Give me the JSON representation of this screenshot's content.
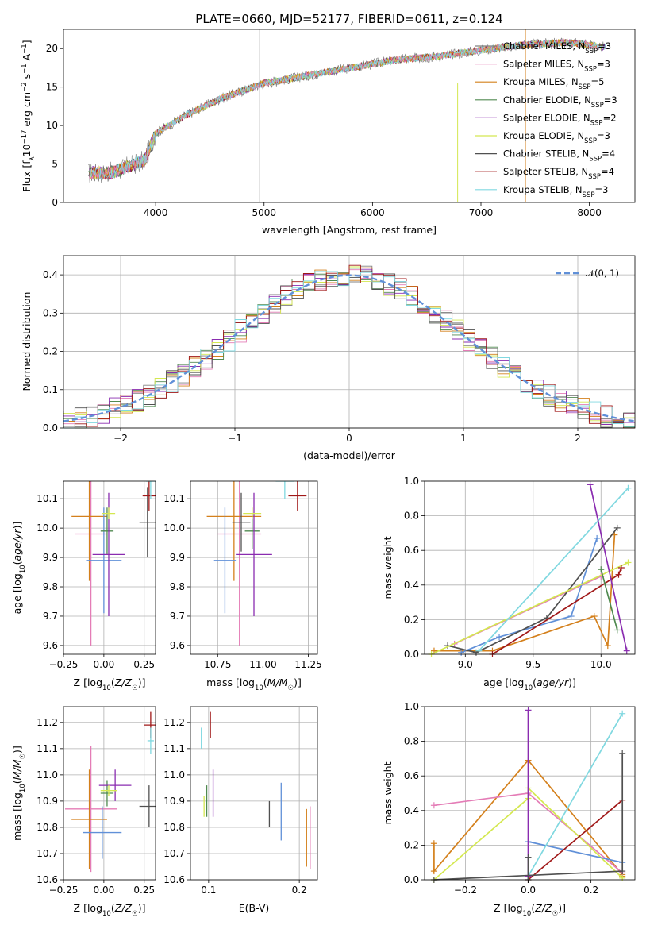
{
  "title": "PLATE=0660, MJD=52177, FIBERID=0611, z=0.124",
  "series_style": [
    {
      "name": "Chabrier MILES",
      "nssp": "3",
      "color": "#808080"
    },
    {
      "name": "Salpeter MILES",
      "nssp": "3",
      "color": "#e47cb6"
    },
    {
      "name": "Kroupa MILES",
      "nssp": "5",
      "color": "#d4801c"
    },
    {
      "name": "Chabrier ELODIE",
      "nssp": "3",
      "color": "#508a50"
    },
    {
      "name": "Salpeter ELODIE",
      "nssp": "2",
      "color": "#8a2cb0"
    },
    {
      "name": "Kroupa ELODIE",
      "nssp": "3",
      "color": "#d4e850"
    },
    {
      "name": "Chabrier STELIB",
      "nssp": "4",
      "color": "#505050"
    },
    {
      "name": "Salpeter STELIB",
      "nssp": "4",
      "color": "#a01818"
    },
    {
      "name": "Kroupa STELIB",
      "nssp": "3",
      "color": "#80d8e0"
    }
  ],
  "chart_data": [
    {
      "id": "spectrum",
      "type": "line",
      "title": "PLATE=0660, MJD=52177, FIBERID=0611, z=0.124",
      "xlabel": "wavelength [Angstrom, rest frame]",
      "ylabel": "Flux [f_λ 10^-17 erg cm^-2 s^-1 A^-1]",
      "xlim": [
        3150,
        8420
      ],
      "ylim": [
        0,
        22.5
      ],
      "xticks": [
        "4000",
        "5000",
        "6000",
        "7000",
        "8000"
      ],
      "yticks": [
        "0",
        "5",
        "10",
        "15",
        "20"
      ],
      "legend_placement": "right",
      "continuum": {
        "x": [
          3380,
          3600,
          3900,
          4000,
          4300,
          4600,
          5000,
          5400,
          5800,
          6200,
          6600,
          7000,
          7400,
          7800,
          8150
        ],
        "y": [
          3.8,
          3.9,
          5.5,
          9.0,
          11.5,
          13.5,
          15.5,
          16.5,
          17.5,
          18.5,
          19.0,
          19.8,
          20.5,
          20.8,
          20.2
        ]
      },
      "vertical_lines": [
        {
          "x": 4960,
          "ymax": 22.5
        },
        {
          "x": 6785,
          "ymax": 15.5
        },
        {
          "x": 7410,
          "ymax": 22.5
        }
      ]
    },
    {
      "id": "residuals",
      "type": "step",
      "xlabel": "(data-model)/error",
      "ylabel": "Normed distribution",
      "xlim": [
        -2.5,
        2.5
      ],
      "ylim": [
        0,
        0.45
      ],
      "xticks": [
        "−2",
        "−1",
        "0",
        "1",
        "2"
      ],
      "yticks": [
        "0.0",
        "0.1",
        "0.2",
        "0.3",
        "0.4"
      ],
      "legend_placement": "upper right",
      "normal_label": "𝒩(0, 1)",
      "normal_color": "#6090d8"
    },
    {
      "id": "age-vs-Z",
      "type": "errorbar",
      "xlabel": "Z [log10(Z/Z☉)]",
      "ylabel": "age [log10(age/yr)]",
      "xlim": [
        -0.25,
        0.32
      ],
      "ylim": [
        9.57,
        10.16
      ],
      "xticks": [
        "−0.25",
        "0.00",
        "0.25"
      ],
      "xtick_values": [
        -0.25,
        0,
        0.25
      ],
      "yticks": [
        "9.6",
        "9.7",
        "9.8",
        "9.9",
        "10.0",
        "10.1"
      ],
      "ytick_values": [
        9.6,
        9.7,
        9.8,
        9.9,
        10.0,
        10.1
      ],
      "points": [
        {
          "color": "#e47cb6",
          "x": -0.08,
          "xerr": 0.1,
          "y": 9.98,
          "yerr": 0.38
        },
        {
          "color": "#d4801c",
          "x": -0.09,
          "xerr": 0.11,
          "y": 10.04,
          "yerr": 0.22
        },
        {
          "color": "#6090d8",
          "x": 0.0,
          "xerr": 0.11,
          "y": 9.89,
          "yerr": 0.18
        },
        {
          "color": "#508a50",
          "x": 0.02,
          "xerr": 0.04,
          "y": 9.99,
          "yerr": 0.08
        },
        {
          "color": "#8a2cb0",
          "x": 0.03,
          "xerr": 0.1,
          "y": 9.91,
          "yerr": 0.21
        },
        {
          "color": "#d4e850",
          "x": 0.03,
          "xerr": 0.04,
          "y": 10.05,
          "yerr": 0.02
        },
        {
          "color": "#505050",
          "x": 0.27,
          "xerr": 0.05,
          "y": 10.02,
          "yerr": 0.12
        },
        {
          "color": "#a01818",
          "x": 0.28,
          "xerr": 0.04,
          "y": 10.11,
          "yerr": 0.05
        },
        {
          "color": "#80d8e0",
          "x": 0.29,
          "xerr": 0.03,
          "y": 10.16,
          "yerr": 0.06
        }
      ]
    },
    {
      "id": "age-vs-mass",
      "type": "errorbar",
      "xlabel": "mass [log10(M/M☉)]",
      "ylabel": "",
      "xlim": [
        10.6,
        11.3
      ],
      "ylim": [
        9.57,
        10.16
      ],
      "xticks": [
        "10.75",
        "11.00",
        "11.25"
      ],
      "xtick_values": [
        10.75,
        11.0,
        11.25
      ],
      "yticks": [
        "9.6",
        "9.7",
        "9.8",
        "9.9",
        "10.0",
        "10.1"
      ],
      "ytick_values": [
        9.6,
        9.7,
        9.8,
        9.9,
        10.0,
        10.1
      ],
      "points": [
        {
          "color": "#e47cb6",
          "x": 10.87,
          "xerr": 0.12,
          "y": 9.98,
          "yerr": 0.38
        },
        {
          "color": "#d4801c",
          "x": 10.84,
          "xerr": 0.15,
          "y": 10.04,
          "yerr": 0.22
        },
        {
          "color": "#6090d8",
          "x": 10.79,
          "xerr": 0.06,
          "y": 9.89,
          "yerr": 0.18
        },
        {
          "color": "#508a50",
          "x": 10.94,
          "xerr": 0.04,
          "y": 9.99,
          "yerr": 0.06
        },
        {
          "color": "#8a2cb0",
          "x": 10.95,
          "xerr": 0.1,
          "y": 9.91,
          "yerr": 0.21
        },
        {
          "color": "#d4e850",
          "x": 10.94,
          "xerr": 0.05,
          "y": 10.05,
          "yerr": 0.02
        },
        {
          "color": "#505050",
          "x": 10.88,
          "xerr": 0.05,
          "y": 10.02,
          "yerr": 0.1
        },
        {
          "color": "#a01818",
          "x": 11.19,
          "xerr": 0.05,
          "y": 10.11,
          "yerr": 0.05
        },
        {
          "color": "#80d8e0",
          "x": 11.12,
          "xerr": 0.05,
          "y": 10.16,
          "yerr": 0.06
        }
      ]
    },
    {
      "id": "massweight-vs-age",
      "type": "line",
      "xlabel": "age  [log10(age/yr)]",
      "ylabel": "mass weight",
      "xlim": [
        8.7,
        10.25
      ],
      "ylim": [
        0,
        1.0
      ],
      "xticks": [
        "9.0",
        "9.5",
        "10.0"
      ],
      "xtick_values": [
        9.0,
        9.5,
        10.0
      ],
      "yticks": [
        "0.0",
        "0.2",
        "0.4",
        "0.6",
        "0.8",
        "1.0"
      ],
      "ytick_values": [
        0,
        0.2,
        0.4,
        0.6,
        0.8,
        1.0
      ],
      "series": [
        {
          "color": "#d4801c",
          "x": [
            8.77,
            9.2,
            9.95,
            10.05,
            10.1
          ],
          "y": [
            0.02,
            0.02,
            0.22,
            0.05,
            0.69
          ]
        },
        {
          "color": "#e47cb6",
          "x": [
            8.92,
            10.0
          ],
          "y": [
            0.06,
            0.45
          ]
        },
        {
          "color": "#6090d8",
          "x": [
            8.97,
            9.25,
            9.78,
            9.97
          ],
          "y": [
            0.01,
            0.1,
            0.22,
            0.67
          ]
        },
        {
          "color": "#505050",
          "x": [
            8.87,
            9.08,
            9.6,
            10.12
          ],
          "y": [
            0.05,
            0.01,
            0.21,
            0.73
          ]
        },
        {
          "color": "#d4e850",
          "x": [
            8.75,
            10.2
          ],
          "y": [
            0.0,
            0.53
          ]
        },
        {
          "color": "#80d8e0",
          "x": [
            9.1,
            10.2
          ],
          "y": [
            0.02,
            0.96
          ]
        },
        {
          "color": "#a01818",
          "x": [
            9.2,
            10.13,
            10.15
          ],
          "y": [
            0.0,
            0.46,
            0.5
          ]
        },
        {
          "color": "#508a50",
          "x": [
            10.0,
            10.12
          ],
          "y": [
            0.49,
            0.14
          ]
        },
        {
          "color": "#8a2cb0",
          "x": [
            9.92,
            10.19
          ],
          "y": [
            0.98,
            0.02
          ]
        }
      ]
    },
    {
      "id": "mass-vs-Z",
      "type": "errorbar",
      "xlabel": "Z [log10(Z/Z☉)]",
      "ylabel": "mass [log10(M/M☉)]",
      "xlim": [
        -0.25,
        0.32
      ],
      "ylim": [
        10.6,
        11.26
      ],
      "xticks": [
        "−0.25",
        "0.00",
        "0.25"
      ],
      "xtick_values": [
        -0.25,
        0,
        0.25
      ],
      "yticks": [
        "10.6",
        "10.7",
        "10.8",
        "10.9",
        "11.0",
        "11.1",
        "11.2"
      ],
      "ytick_values": [
        10.6,
        10.7,
        10.8,
        10.9,
        11.0,
        11.1,
        11.2
      ],
      "points": [
        {
          "color": "#e47cb6",
          "x": -0.08,
          "xerr": 0.16,
          "y": 10.87,
          "yerr": 0.24
        },
        {
          "color": "#d4801c",
          "x": -0.09,
          "xerr": 0.11,
          "y": 10.83,
          "yerr": 0.19
        },
        {
          "color": "#6090d8",
          "x": -0.01,
          "xerr": 0.12,
          "y": 10.78,
          "yerr": 0.1
        },
        {
          "color": "#508a50",
          "x": 0.02,
          "xerr": 0.04,
          "y": 10.93,
          "yerr": 0.05
        },
        {
          "color": "#8a2cb0",
          "x": 0.07,
          "xerr": 0.1,
          "y": 10.96,
          "yerr": 0.06
        },
        {
          "color": "#d4e850",
          "x": 0.03,
          "xerr": 0.05,
          "y": 10.94,
          "yerr": 0.02
        },
        {
          "color": "#505050",
          "x": 0.28,
          "xerr": 0.06,
          "y": 10.88,
          "yerr": 0.08
        },
        {
          "color": "#a01818",
          "x": 0.29,
          "xerr": 0.04,
          "y": 11.19,
          "yerr": 0.05
        },
        {
          "color": "#80d8e0",
          "x": 0.29,
          "xerr": 0.02,
          "y": 11.13,
          "yerr": 0.05
        }
      ]
    },
    {
      "id": "mass-vs-EBV",
      "type": "errorbar",
      "xlabel": "E(B-V)",
      "ylabel": "",
      "xlim": [
        0.08,
        0.22
      ],
      "ylim": [
        10.6,
        11.26
      ],
      "xticks": [
        "0.1",
        "0.2"
      ],
      "xtick_values": [
        0.1,
        0.2
      ],
      "yticks": [
        "10.6",
        "10.7",
        "10.8",
        "10.9",
        "11.0",
        "11.1",
        "11.2"
      ],
      "ytick_values": [
        10.6,
        10.7,
        10.8,
        10.9,
        11.0,
        11.1,
        11.2
      ],
      "points": [
        {
          "color": "#e47cb6",
          "x": 0.212,
          "xerr": 0,
          "y": 10.76,
          "yerr": 0.12
        },
        {
          "color": "#d4801c",
          "x": 0.208,
          "xerr": 0,
          "y": 10.76,
          "yerr": 0.11
        },
        {
          "color": "#6090d8",
          "x": 0.18,
          "xerr": 0,
          "y": 10.86,
          "yerr": 0.11
        },
        {
          "color": "#505050",
          "x": 0.167,
          "xerr": 0,
          "y": 10.85,
          "yerr": 0.05
        },
        {
          "color": "#8a2cb0",
          "x": 0.105,
          "xerr": 0,
          "y": 10.93,
          "yerr": 0.09
        },
        {
          "color": "#508a50",
          "x": 0.098,
          "xerr": 0,
          "y": 10.9,
          "yerr": 0.06
        },
        {
          "color": "#d4e850",
          "x": 0.095,
          "xerr": 0,
          "y": 10.88,
          "yerr": 0.04
        },
        {
          "color": "#a01818",
          "x": 0.102,
          "xerr": 0,
          "y": 11.19,
          "yerr": 0.05
        },
        {
          "color": "#80d8e0",
          "x": 0.092,
          "xerr": 0,
          "y": 11.14,
          "yerr": 0.04
        }
      ]
    },
    {
      "id": "massweight-vs-Z",
      "type": "line",
      "xlabel": "Z [log10(Z/Z☉)]",
      "ylabel": "mass weight",
      "xlim": [
        -0.33,
        0.34
      ],
      "ylim": [
        0,
        1.0
      ],
      "xticks": [
        "−0.2",
        "0.0",
        "0.2"
      ],
      "xtick_values": [
        -0.2,
        0,
        0.2
      ],
      "yticks": [
        "0.0",
        "0.2",
        "0.4",
        "0.6",
        "0.8",
        "1.0"
      ],
      "ytick_values": [
        0,
        0.2,
        0.4,
        0.6,
        0.8,
        1.0
      ],
      "series": [
        {
          "color": "#d4801c",
          "x": [
            -0.3,
            -0.3,
            0.0,
            0.3,
            0.3
          ],
          "y": [
            0.21,
            0.05,
            0.69,
            0.03,
            0.02
          ]
        },
        {
          "color": "#e47cb6",
          "x": [
            -0.3,
            0.0,
            0.3
          ],
          "y": [
            0.43,
            0.5,
            0.04
          ]
        },
        {
          "color": "#d4e850",
          "x": [
            -0.3,
            0.0,
            0.0,
            0.3
          ],
          "y": [
            0.0,
            0.47,
            0.53,
            0.01
          ]
        },
        {
          "color": "#6090d8",
          "x": [
            0.0,
            0.3
          ],
          "y": [
            0.22,
            0.1
          ]
        },
        {
          "color": "#80d8e0",
          "x": [
            0.0,
            0.3
          ],
          "y": [
            0.02,
            0.96
          ]
        },
        {
          "color": "#a01818",
          "x": [
            0.0,
            0.3
          ],
          "y": [
            0.0,
            0.46
          ]
        },
        {
          "color": "#505050",
          "x": [
            -0.3,
            0.3,
            0.3
          ],
          "y": [
            0.0,
            0.05,
            0.73
          ]
        },
        {
          "color": "#8a2cb0",
          "x": [
            0.0,
            0.0
          ],
          "y": [
            0.98,
            0.02
          ]
        },
        {
          "color": "#505050",
          "x": [
            0.0,
            0.0
          ],
          "y": [
            0.0,
            0.13
          ]
        }
      ]
    }
  ]
}
